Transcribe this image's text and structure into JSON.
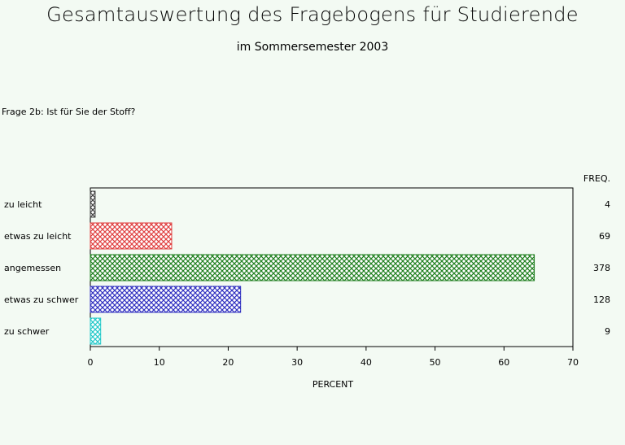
{
  "title": "Gesamtauswertung des Fragebogens für Studierende",
  "subtitle": "im Sommersemester 2003",
  "question": "Frage 2b: Ist für Sie der Stoff?",
  "chart_data": {
    "type": "bar",
    "orientation": "horizontal",
    "categories": [
      "zu leicht",
      "etwas zu leicht",
      "angemessen",
      "etwas zu schwer",
      "zu schwer"
    ],
    "values": [
      0.7,
      11.8,
      64.4,
      21.8,
      1.5
    ],
    "freq_header": "FREQ.",
    "freq": [
      "4",
      "69",
      "378",
      "128",
      "9"
    ],
    "xlabel": "PERCENT",
    "xlim": [
      0,
      70
    ],
    "xticks": [
      "0",
      "10",
      "20",
      "30",
      "40",
      "50",
      "60",
      "70"
    ],
    "colors": [
      "#404040",
      "#e04040",
      "#208020",
      "#3030c0",
      "#20c8c8"
    ],
    "pattern": "crosshatch",
    "grid": false
  }
}
